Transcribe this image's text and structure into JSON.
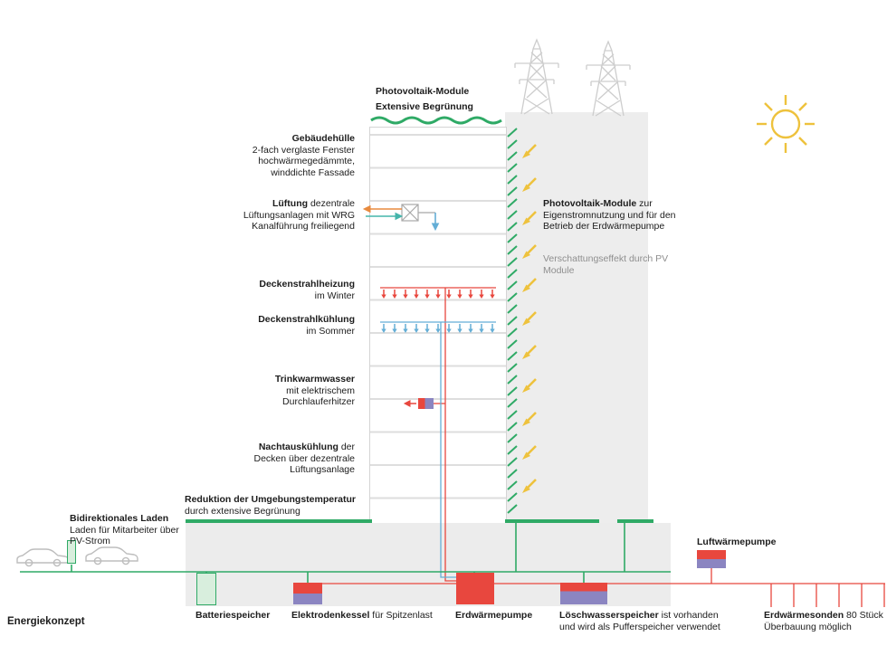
{
  "diagram": {
    "title": "Energiekonzept",
    "colors": {
      "green": "#2faa66",
      "light_green": "#d8eedd",
      "yellow": "#eec23d",
      "red": "#e8473e",
      "blue": "#64aed6",
      "teal": "#45b5ab",
      "purple": "#8b85c1",
      "orange": "#e88a3e",
      "gray_structure": "#cdcdcd",
      "gray_text": "#8f8f8f"
    },
    "roof_labels": {
      "pv": "Photovoltaik-Module",
      "greening": "Extensive Begrünung"
    },
    "left_labels": {
      "envelope": {
        "title": "Gebäudehülle",
        "lines": [
          "2-fach verglaste Fenster",
          "hochwärmegedämmte,",
          "winddichte Fassade"
        ]
      },
      "ventilation": {
        "title": "Lüftung",
        "suffix": " dezentrale",
        "lines": [
          "Lüftungsanlagen mit WRG",
          "Kanalführung freiliegend"
        ]
      },
      "ceiling_heating": {
        "title": "Deckenstrahlheizung",
        "lines": [
          "im Winter"
        ]
      },
      "ceiling_cooling": {
        "title": "Deckenstrahlkühlung",
        "lines": [
          "im Sommer"
        ]
      },
      "hot_water": {
        "title": "Trinkwarmwasser",
        "lines": [
          "mit elektrischem",
          "Durchlauferhitzer"
        ]
      },
      "night_cooling": {
        "title": "Nachtauskühlung",
        "suffix": " der",
        "lines": [
          "Decken über dezentrale",
          "Lüftungsanlage"
        ]
      }
    },
    "right_labels": {
      "pv_use": {
        "title": "Photovoltaik-Module",
        "suffix": " zur",
        "lines": [
          "Eigenstromnutzung und für den",
          "Betrieb der Erdwärmepumpe"
        ]
      },
      "shading": {
        "lines": [
          "Verschattungseffekt durch PV",
          "Module"
        ]
      }
    },
    "ground_labels": {
      "reduction": {
        "title": "Reduktion der Umgebungstemperatur",
        "lines": [
          "durch extensive Begrünung"
        ]
      },
      "bidirectional": {
        "title": "Bidirektionales Laden",
        "lines": [
          "Laden für Mitarbeiter über",
          "PV-Strom"
        ]
      },
      "air_heat_pump": {
        "title": "Luftwärmepumpe"
      }
    },
    "equipment_labels": {
      "battery": {
        "title": "Batteriespeicher"
      },
      "electrode_boiler": {
        "title": "Elektrodenkessel",
        "suffix": " für Spitzenlast"
      },
      "ground_heat_pump": {
        "title": "Erdwärmepumpe"
      },
      "fire_water": {
        "title": "Löschwasserspeicher",
        "suffix": " ist vorhanden",
        "lines": [
          "und wird als Pufferspeicher verwendet"
        ]
      },
      "probes": {
        "title": "Erdwärmesonden",
        "suffix": " 80 Stück",
        "lines": [
          "Überbauung möglich"
        ]
      }
    }
  }
}
